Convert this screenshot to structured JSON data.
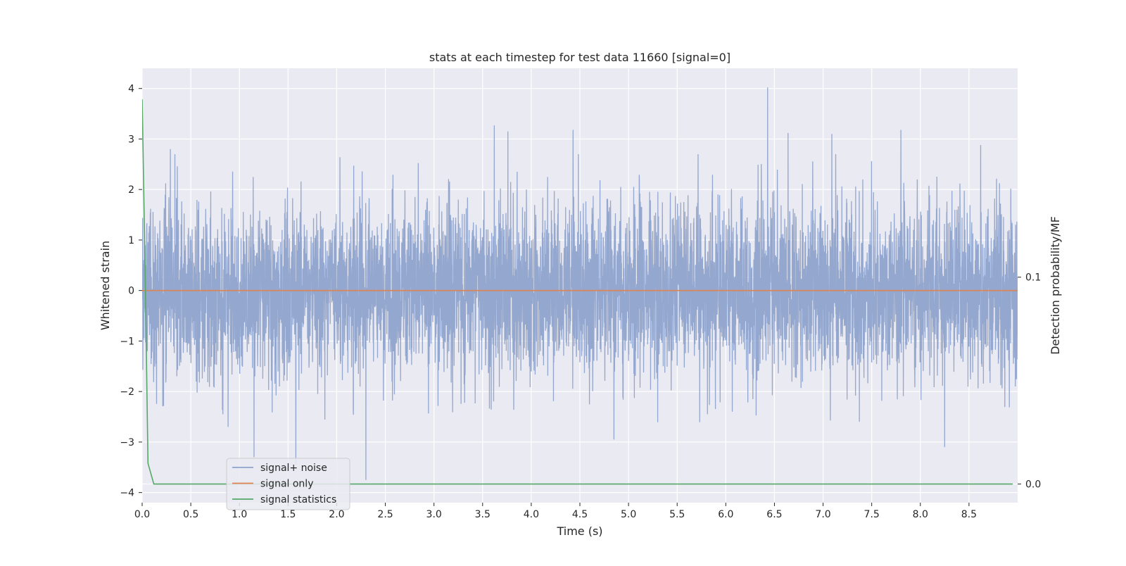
{
  "chart_data": {
    "type": "line",
    "title": "stats at each timestep for test data 11660 [signal=0]",
    "xlabel": "Time (s)",
    "ylabel": "Whitened strain",
    "y2label": "Detection probability/MF",
    "xlim": [
      0.0,
      9.0
    ],
    "ylim": [
      -4.2,
      4.4
    ],
    "y2lim": [
      -0.009,
      0.201
    ],
    "xticks": [
      0.0,
      0.5,
      1.0,
      1.5,
      2.0,
      2.5,
      3.0,
      3.5,
      4.0,
      4.5,
      5.0,
      5.5,
      6.0,
      6.5,
      7.0,
      7.5,
      8.0,
      8.5
    ],
    "xtick_labels": [
      "0.0",
      "0.5",
      "1.0",
      "1.5",
      "2.0",
      "2.5",
      "3.0",
      "3.5",
      "4.0",
      "4.5",
      "5.0",
      "5.5",
      "6.0",
      "6.5",
      "7.0",
      "7.5",
      "8.0",
      "8.5"
    ],
    "yticks": [
      4,
      3,
      2,
      1,
      0,
      -1,
      -2,
      -3,
      -4
    ],
    "ytick_labels": [
      "4",
      "3",
      "2",
      "1",
      "0",
      "−1",
      "−2",
      "−3",
      "−4"
    ],
    "y2ticks": [
      0.1,
      0.0
    ],
    "y2tick_labels": [
      "0.1",
      "0.0"
    ],
    "grid": true,
    "legend_position": "lower-left",
    "series": [
      {
        "name": "signal+ noise",
        "color": "#8fa3cc",
        "kind": "noise",
        "sample_rate_hz": 2048,
        "x_end": 9.0,
        "envelope": [
          -1.0,
          1.0
        ],
        "typical_peak_range": [
          -2.6,
          2.6
        ],
        "spikes": [
          {
            "x": 0.29,
            "y": 2.8
          },
          {
            "x": 0.83,
            "y": -2.45
          },
          {
            "x": 1.15,
            "y": -3.3
          },
          {
            "x": 1.58,
            "y": -3.45
          },
          {
            "x": 2.3,
            "y": -3.75
          },
          {
            "x": 3.62,
            "y": 3.27
          },
          {
            "x": 3.76,
            "y": 3.15
          },
          {
            "x": 4.43,
            "y": 3.18
          },
          {
            "x": 4.85,
            "y": -2.95
          },
          {
            "x": 6.43,
            "y": 4.02
          },
          {
            "x": 6.64,
            "y": 3.12
          },
          {
            "x": 7.09,
            "y": 3.1
          },
          {
            "x": 7.8,
            "y": 3.18
          },
          {
            "x": 8.25,
            "y": -3.1
          },
          {
            "x": 8.62,
            "y": 2.88
          }
        ]
      },
      {
        "name": "signal only",
        "color": "#dd8452",
        "kind": "line",
        "x": [
          0.0,
          9.0
        ],
        "y": [
          0.0,
          0.0
        ]
      },
      {
        "name": "signal statistics",
        "color": "#55a868",
        "kind": "line",
        "axis": "y2",
        "x": [
          0.0,
          0.03,
          0.06,
          0.12,
          0.2,
          0.5,
          1.0,
          2.0,
          3.0,
          4.0,
          5.0,
          6.0,
          7.0,
          8.0,
          8.95
        ],
        "y": [
          0.186,
          0.105,
          0.01,
          0.0,
          0.0,
          0.0,
          0.0,
          0.0,
          0.0,
          0.0,
          0.0,
          0.0,
          0.0,
          0.0,
          0.0
        ]
      }
    ]
  }
}
